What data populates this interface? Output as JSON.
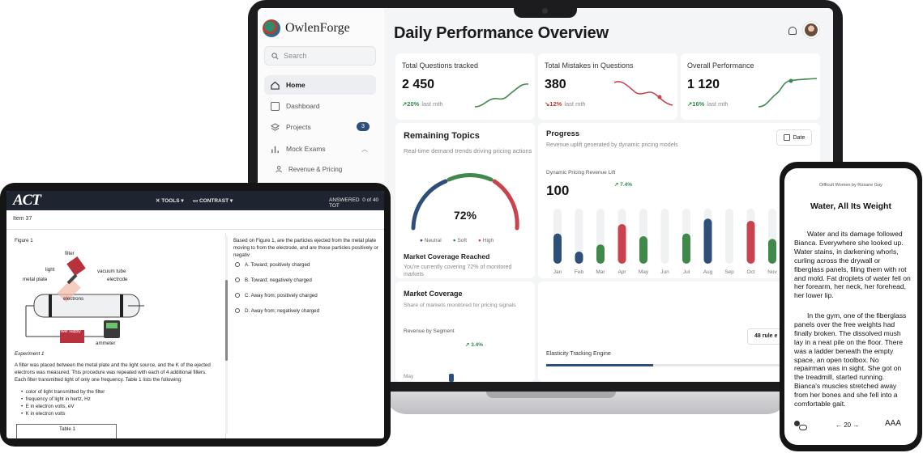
{
  "dashboard": {
    "brand": "OwlenForge",
    "search_placeholder": "Search",
    "nav": [
      {
        "label": "Home",
        "icon": "home-icon"
      },
      {
        "label": "Dashboard",
        "icon": "dashboard-icon"
      },
      {
        "label": "Projects",
        "icon": "layers-icon",
        "badge": "3"
      },
      {
        "label": "Mock Exams",
        "icon": "chart-icon"
      }
    ],
    "sub_nav": [
      {
        "label": "Revenue & Pricing",
        "icon": "people-icon"
      }
    ],
    "title": "Daily Performance Overview",
    "stats": [
      {
        "title": "Total Questions tracked",
        "value": "2 450",
        "delta": "20%",
        "delta_dir": "up",
        "period": "last mth",
        "color": "#2f8a4a"
      },
      {
        "title": "Total Mistakes in Questions",
        "value": "380",
        "delta": "12%",
        "delta_dir": "down",
        "period": "last mth",
        "color": "#c0392b"
      },
      {
        "title": "Overall Performance",
        "value": "1 120",
        "delta": "16%",
        "delta_dir": "up",
        "period": "last mth",
        "color": "#2f8a4a"
      }
    ],
    "remaining": {
      "title": "Remaining Topics",
      "subtitle": "Real-time demand trends driving pricing actions",
      "gauge_value": "72%",
      "gauge_fraction": 0.72,
      "legend": [
        {
          "label": "Neutral",
          "color": "#2e4f7a"
        },
        {
          "label": "Soft",
          "color": "#3f8a4a"
        },
        {
          "label": "High",
          "color": "#c9434f"
        }
      ],
      "coverage_title": "Market Coverage Reached",
      "coverage_text": "You're currently covering 72% of monitored markets"
    },
    "progress": {
      "title": "Progress",
      "subtitle": "Revenue uplift generated by dynamic pricing models",
      "date_button": "Date",
      "lift_label": "Dynamic Pricing Revenue Lift",
      "lift_delta": "7.4%",
      "lift_value": "100"
    },
    "market": {
      "title": "Market Coverage",
      "subtitle": "Share of markets monitored for pricing signals",
      "segment_label": "Revenue by Segment",
      "segment_delta": "3.4%",
      "partial_label": "May"
    },
    "elasticity": {
      "label": "Elasticity Tracking Engine",
      "rule_button": "48 rule e"
    }
  },
  "chart_data": {
    "type": "bar",
    "categories": [
      "Jan",
      "Feb",
      "Mar",
      "Apr",
      "May",
      "Jun",
      "Jul",
      "Aug",
      "Sep",
      "Oct",
      "Nov"
    ],
    "values": [
      55,
      22,
      35,
      72,
      50,
      0,
      55,
      82,
      0,
      78,
      45
    ],
    "colors": [
      "#2e4f7a",
      "#2e4f7a",
      "#3f8a4a",
      "#c9434f",
      "#3f8a4a",
      "none",
      "#3f8a4a",
      "#2e4f7a",
      "none",
      "#c9434f",
      "#3f8a4a"
    ],
    "ylim": [
      0,
      100
    ]
  },
  "act": {
    "logo": "ACT",
    "tools": "TOOLS",
    "contrast": "CONTRAST",
    "answered_label": "ANSWERED",
    "answered_count": "0 of 40",
    "tot": "TOT",
    "item": "Item 37",
    "figure": "Figure 1",
    "labels": {
      "filter": "filter",
      "light": "light",
      "vacuum": "vacuum tube",
      "plate": "metal plate",
      "electrode": "electrode",
      "electrons": "electrons",
      "power": "power supply",
      "ammeter": "ammeter"
    },
    "experiment": "Experiment 1",
    "body": "A filter was placed between the metal plate and the light source, and the K of the ejected electrons was measured. This procedure was repeated with each of 4 additional filters. Each filter transmitted light of only one frequency. Table 1 lists the following:",
    "bullets": [
      "color of light transmitted by the filter",
      "frequency of light in hertz, Hz",
      "E in electron volts, eV",
      "K in electron volts"
    ],
    "table_title": "Table 1",
    "question": "Based on Figure 1, are the particles ejected from the metal plate moving to from the electrode, and are those particles positively or negativ",
    "options": [
      "A. Toward; positively charged",
      "B. Toward; negatively charged",
      "C. Away from; positively charged",
      "D. Away from; negatively charged"
    ]
  },
  "reader": {
    "book": "Difficult Women by Roxane Gay",
    "title": "Water, All Its Weight",
    "para1": "Water and its damage followed Bianca. Everywhere she looked up. Water stains, in darkening whorls, curling across the drywall or fiberglass panels, filing them with rot and mold. Fat droplets of water fell on her forearm, her neck, her forehead, her lower lip.",
    "para2": "In the gym, one of the fiberglass panels over the free weights had finally broken. The dissolved mush lay in a neat pile on the floor. There was a ladder beneath the empty space, an open toolbox. No repairman was in sight. She got on the treadmill, started running. Bianca's muscles stretched away from her bones and she fell into a comfortable gait.",
    "page": "20",
    "font_controls": "AAA"
  }
}
